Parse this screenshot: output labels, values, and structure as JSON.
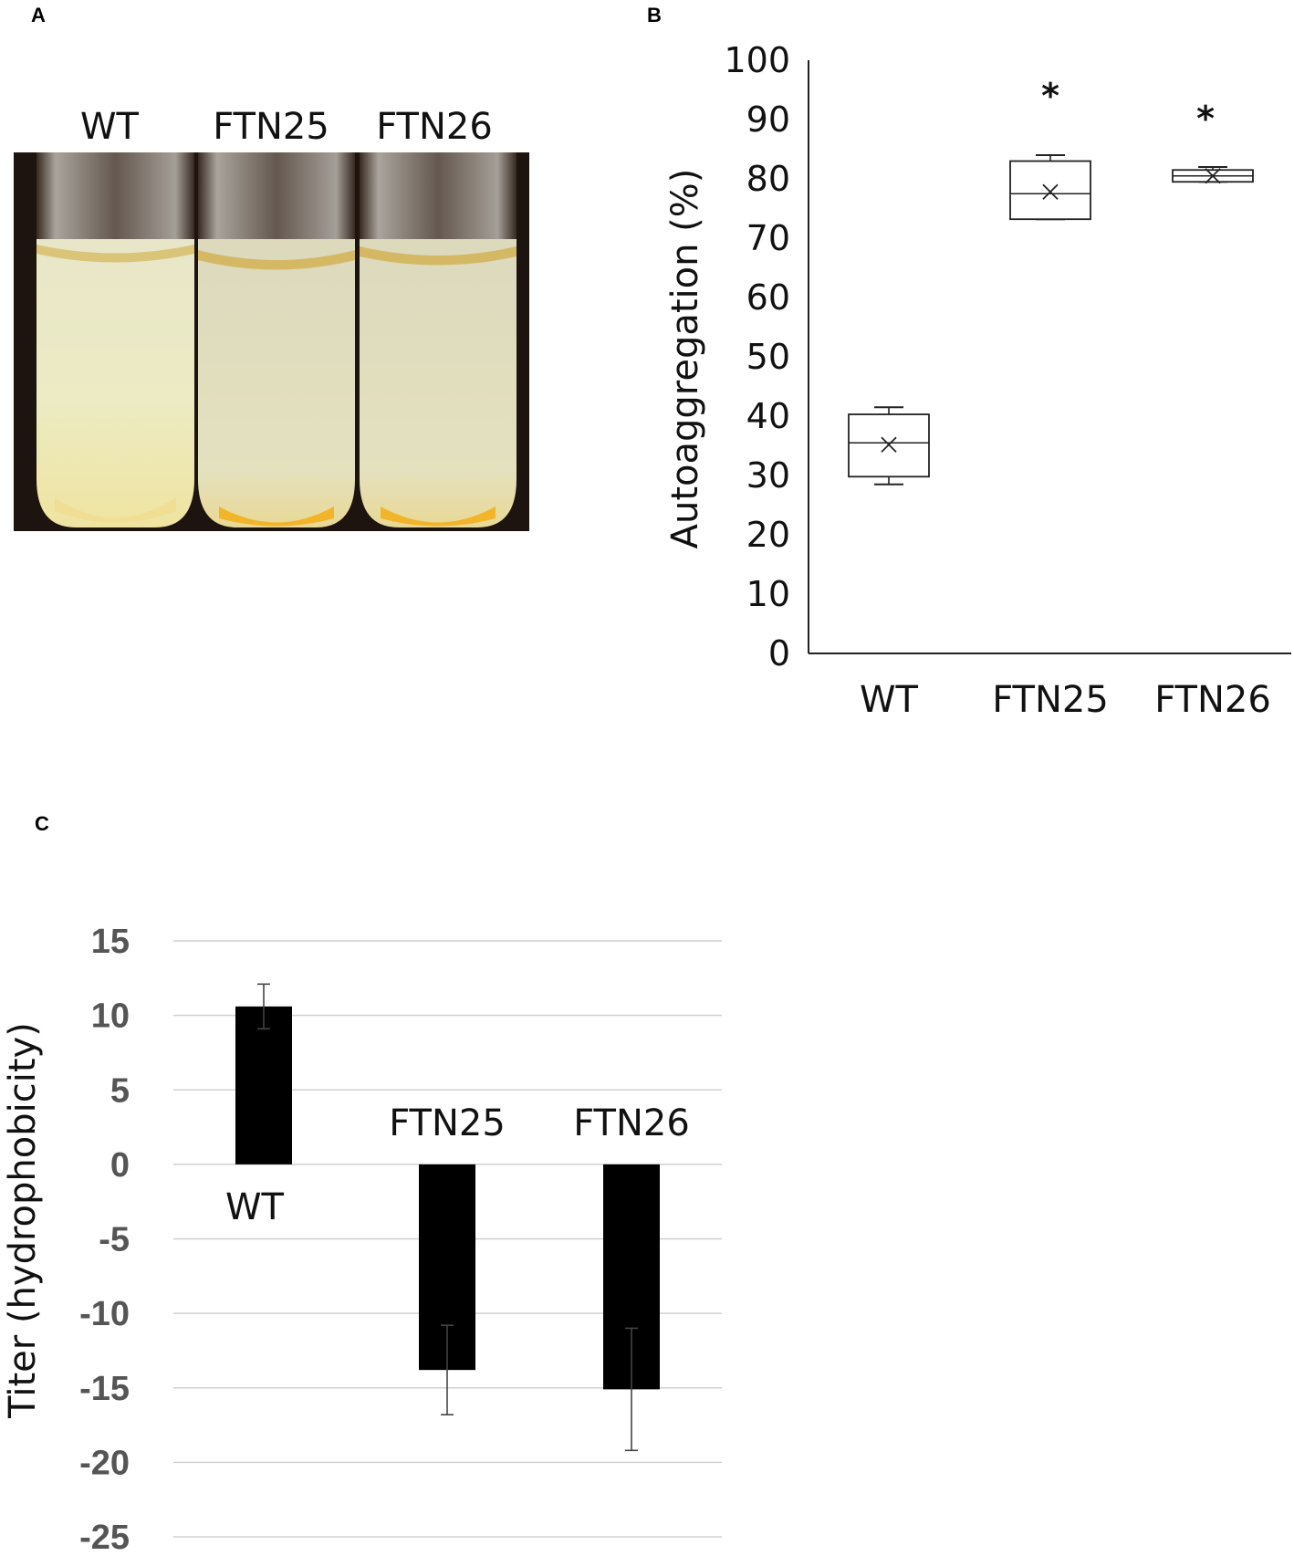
{
  "panels": {
    "a": {
      "letter": "A",
      "tube_labels": [
        "WT",
        "FTN25",
        "FTN26"
      ]
    },
    "b": {
      "letter": "B"
    },
    "c": {
      "letter": "C"
    }
  },
  "chart_data": [
    {
      "panel": "B",
      "type": "box",
      "categories": [
        "WT",
        "FTN25",
        "FTN26"
      ],
      "ylabel": "Autoaggregation (%)",
      "ylim": [
        0,
        100
      ],
      "yticks": [
        0,
        10,
        20,
        30,
        40,
        50,
        60,
        70,
        80,
        90,
        100
      ],
      "boxes": [
        {
          "category": "WT",
          "min": 28.5,
          "q1": 29.8,
          "median": 35.5,
          "q3": 40.3,
          "max": 41.5,
          "mean": 35.2,
          "annotation": ""
        },
        {
          "category": "FTN25",
          "min": 73.2,
          "q1": 73.2,
          "median": 77.5,
          "q3": 83.0,
          "max": 84.0,
          "mean": 77.8,
          "annotation": "*"
        },
        {
          "category": "FTN26",
          "min": 79.5,
          "q1": 79.5,
          "median": 80.5,
          "q3": 81.5,
          "max": 82.0,
          "mean": 80.5,
          "annotation": "*"
        }
      ],
      "grid": false
    },
    {
      "panel": "C",
      "type": "bar",
      "categories": [
        "WT",
        "FTN25",
        "FTN26"
      ],
      "values": [
        10.6,
        -13.8,
        -15.1
      ],
      "error": [
        1.5,
        3.0,
        4.1
      ],
      "ylabel": "Titer (hydrophobicity)",
      "ylim": [
        -25,
        15
      ],
      "yticks": [
        15,
        10,
        5,
        0,
        -5,
        -10,
        -15,
        -20,
        -25
      ],
      "bar_color": "#000000",
      "grid": true
    }
  ]
}
